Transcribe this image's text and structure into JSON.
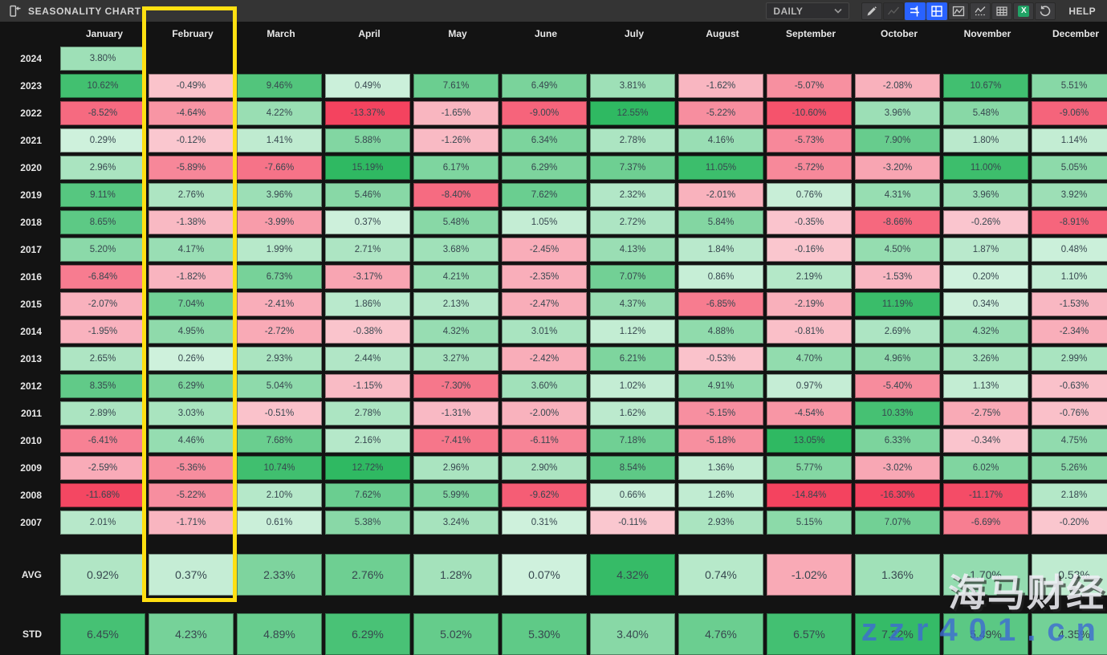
{
  "titlebar": {
    "title": "SEASONALITY CHART",
    "timeframe": "DAILY",
    "help_label": "HELP",
    "icons": [
      "collapse-panel-icon",
      "brush-icon",
      "sparkline-icon",
      "axis-scale-icon",
      "grid-layout-icon",
      "line-chart-icon",
      "baseline-chart-icon",
      "data-table-icon",
      "excel-export-icon",
      "reset-icon",
      "chevron-down-icon"
    ],
    "active_icon_color": "#2962ff",
    "excel_icon_color": "#21a366"
  },
  "table": {
    "months": [
      "January",
      "February",
      "March",
      "April",
      "May",
      "June",
      "July",
      "August",
      "September",
      "October",
      "November",
      "December"
    ],
    "years": [
      {
        "year": "2024",
        "values": [
          3.8,
          null,
          null,
          null,
          null,
          null,
          null,
          null,
          null,
          null,
          null,
          null
        ]
      },
      {
        "year": "2023",
        "values": [
          10.62,
          -0.49,
          9.46,
          0.49,
          7.61,
          6.49,
          3.81,
          -1.62,
          -5.07,
          -2.08,
          10.67,
          5.51
        ]
      },
      {
        "year": "2022",
        "values": [
          -8.52,
          -4.64,
          4.22,
          -13.37,
          -1.65,
          -9.0,
          12.55,
          -5.22,
          -10.6,
          3.96,
          5.48,
          -9.06
        ]
      },
      {
        "year": "2021",
        "values": [
          0.29,
          -0.12,
          1.41,
          5.88,
          -1.26,
          6.34,
          2.78,
          4.16,
          -5.73,
          7.9,
          1.8,
          1.14
        ]
      },
      {
        "year": "2020",
        "values": [
          2.96,
          -5.89,
          -7.66,
          15.19,
          6.17,
          6.29,
          7.37,
          11.05,
          -5.72,
          -3.2,
          11.0,
          5.05
        ]
      },
      {
        "year": "2019",
        "values": [
          9.11,
          2.76,
          3.96,
          5.46,
          -8.4,
          7.62,
          2.32,
          -2.01,
          0.76,
          4.31,
          3.96,
          3.92
        ]
      },
      {
        "year": "2018",
        "values": [
          8.65,
          -1.38,
          -3.99,
          0.37,
          5.48,
          1.05,
          2.72,
          5.84,
          -0.35,
          -8.66,
          -0.26,
          -8.91
        ]
      },
      {
        "year": "2017",
        "values": [
          5.2,
          4.17,
          1.99,
          2.71,
          3.68,
          -2.45,
          4.13,
          1.84,
          -0.16,
          4.5,
          1.87,
          0.48
        ]
      },
      {
        "year": "2016",
        "values": [
          -6.84,
          -1.82,
          6.73,
          -3.17,
          4.21,
          -2.35,
          7.07,
          0.86,
          2.19,
          -1.53,
          0.2,
          1.1
        ]
      },
      {
        "year": "2015",
        "values": [
          -2.07,
          7.04,
          -2.41,
          1.86,
          2.13,
          -2.47,
          4.37,
          -6.85,
          -2.19,
          11.19,
          0.34,
          -1.53
        ]
      },
      {
        "year": "2014",
        "values": [
          -1.95,
          4.95,
          -2.72,
          -0.38,
          4.32,
          3.01,
          1.12,
          4.88,
          -0.81,
          2.69,
          4.32,
          -2.34
        ]
      },
      {
        "year": "2013",
        "values": [
          2.65,
          0.26,
          2.93,
          2.44,
          3.27,
          -2.42,
          6.21,
          -0.53,
          4.7,
          4.96,
          3.26,
          2.99
        ]
      },
      {
        "year": "2012",
        "values": [
          8.35,
          6.29,
          5.04,
          -1.15,
          -7.3,
          3.6,
          1.02,
          4.91,
          0.97,
          -5.4,
          1.13,
          -0.63
        ]
      },
      {
        "year": "2011",
        "values": [
          2.89,
          3.03,
          -0.51,
          2.78,
          -1.31,
          -2.0,
          1.62,
          -5.15,
          -4.54,
          10.33,
          -2.75,
          -0.76
        ]
      },
      {
        "year": "2010",
        "values": [
          -6.41,
          4.46,
          7.68,
          2.16,
          -7.41,
          -6.11,
          7.18,
          -5.18,
          13.05,
          6.33,
          -0.34,
          4.75
        ]
      },
      {
        "year": "2009",
        "values": [
          -2.59,
          -5.36,
          10.74,
          12.72,
          2.96,
          2.9,
          8.54,
          1.36,
          5.77,
          -3.02,
          6.02,
          5.26
        ]
      },
      {
        "year": "2008",
        "values": [
          -11.68,
          -5.22,
          2.1,
          7.62,
          5.99,
          -9.62,
          0.66,
          1.26,
          -14.84,
          -16.3,
          -11.17,
          2.18
        ]
      },
      {
        "year": "2007",
        "values": [
          2.01,
          -1.71,
          0.61,
          5.38,
          3.24,
          0.31,
          -0.11,
          2.93,
          5.15,
          7.07,
          -6.69,
          -0.2
        ]
      }
    ],
    "summary": [
      {
        "label": "AVG",
        "values": [
          0.92,
          0.37,
          2.33,
          2.76,
          1.28,
          0.07,
          4.32,
          0.74,
          -1.02,
          1.36,
          1.7,
          0.53
        ]
      },
      {
        "label": "STD",
        "values": [
          6.45,
          4.23,
          4.89,
          6.29,
          5.02,
          5.3,
          3.4,
          4.76,
          6.57,
          7.22,
          5.49,
          4.35
        ]
      }
    ]
  },
  "highlight": {
    "column": "February"
  },
  "watermark": {
    "line1": "海马财经",
    "line2": "zzr401.cn"
  },
  "colors": {
    "positive_strong": "#2fb962",
    "positive_pale": "#d2f2df",
    "negative_strong": "#f4435f",
    "negative_pale": "#fac8d0",
    "highlight_border": "#ffe011",
    "cell_text": "#37474f"
  }
}
